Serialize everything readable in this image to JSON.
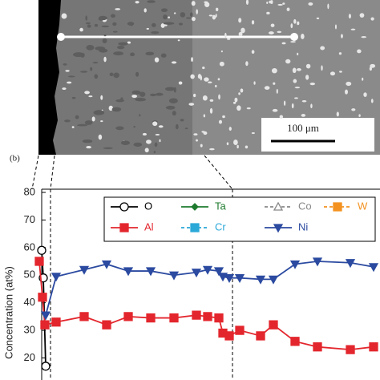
{
  "chart_data": {
    "type": "line",
    "annotations": [
      "(b)",
      "100 μm"
    ],
    "ylabel": "Concentration (at%)",
    "xlim": [
      0,
      422
    ],
    "ylim": [
      12,
      80
    ],
    "yticks": [
      20,
      30,
      40,
      50,
      60,
      70,
      80
    ],
    "series": [
      {
        "name": "O",
        "color": "#000000",
        "marker": "circle",
        "dashed": false,
        "x": [
          0,
          2,
          5
        ],
        "values": [
          59,
          49,
          17
        ]
      },
      {
        "name": "Ta",
        "color": "#1e7b2e",
        "marker": "diamond",
        "dashed": false,
        "x": [],
        "values": []
      },
      {
        "name": "Co",
        "color": "#888888",
        "marker": "triangle",
        "dashed": true,
        "x": [],
        "values": []
      },
      {
        "name": "W",
        "color": "#f39221",
        "marker": "square",
        "dashed": true,
        "x": [],
        "values": []
      },
      {
        "name": "Al",
        "color": "#e3262d",
        "marker": "square",
        "dashed": false,
        "x": [
          -3,
          1,
          4,
          18,
          53,
          81,
          108,
          136,
          165,
          193,
          207,
          221,
          226,
          234,
          247,
          273,
          289,
          316,
          344,
          385,
          414
        ],
        "values": [
          55,
          42,
          32,
          33,
          35,
          32,
          35,
          34.5,
          34.5,
          35.5,
          35,
          34.5,
          29,
          28,
          30,
          28,
          32,
          26,
          24,
          23,
          24
        ]
      },
      {
        "name": "Cr",
        "color": "#2aa8d8",
        "marker": "square",
        "dashed": true,
        "x": [],
        "values": []
      },
      {
        "name": "Ni",
        "color": "#2b4aa0",
        "marker": "triangledown",
        "dashed": false,
        "x": [
          5,
          18,
          53,
          81,
          108,
          136,
          165,
          193,
          207,
          221,
          226,
          234,
          247,
          273,
          289,
          316,
          344,
          385,
          414
        ],
        "values": [
          35.5,
          49.5,
          52,
          54,
          51.5,
          51.5,
          50,
          51,
          52,
          51.5,
          49.5,
          49,
          49,
          48.5,
          48.5,
          54,
          55,
          54.5,
          53
        ]
      }
    ]
  }
}
